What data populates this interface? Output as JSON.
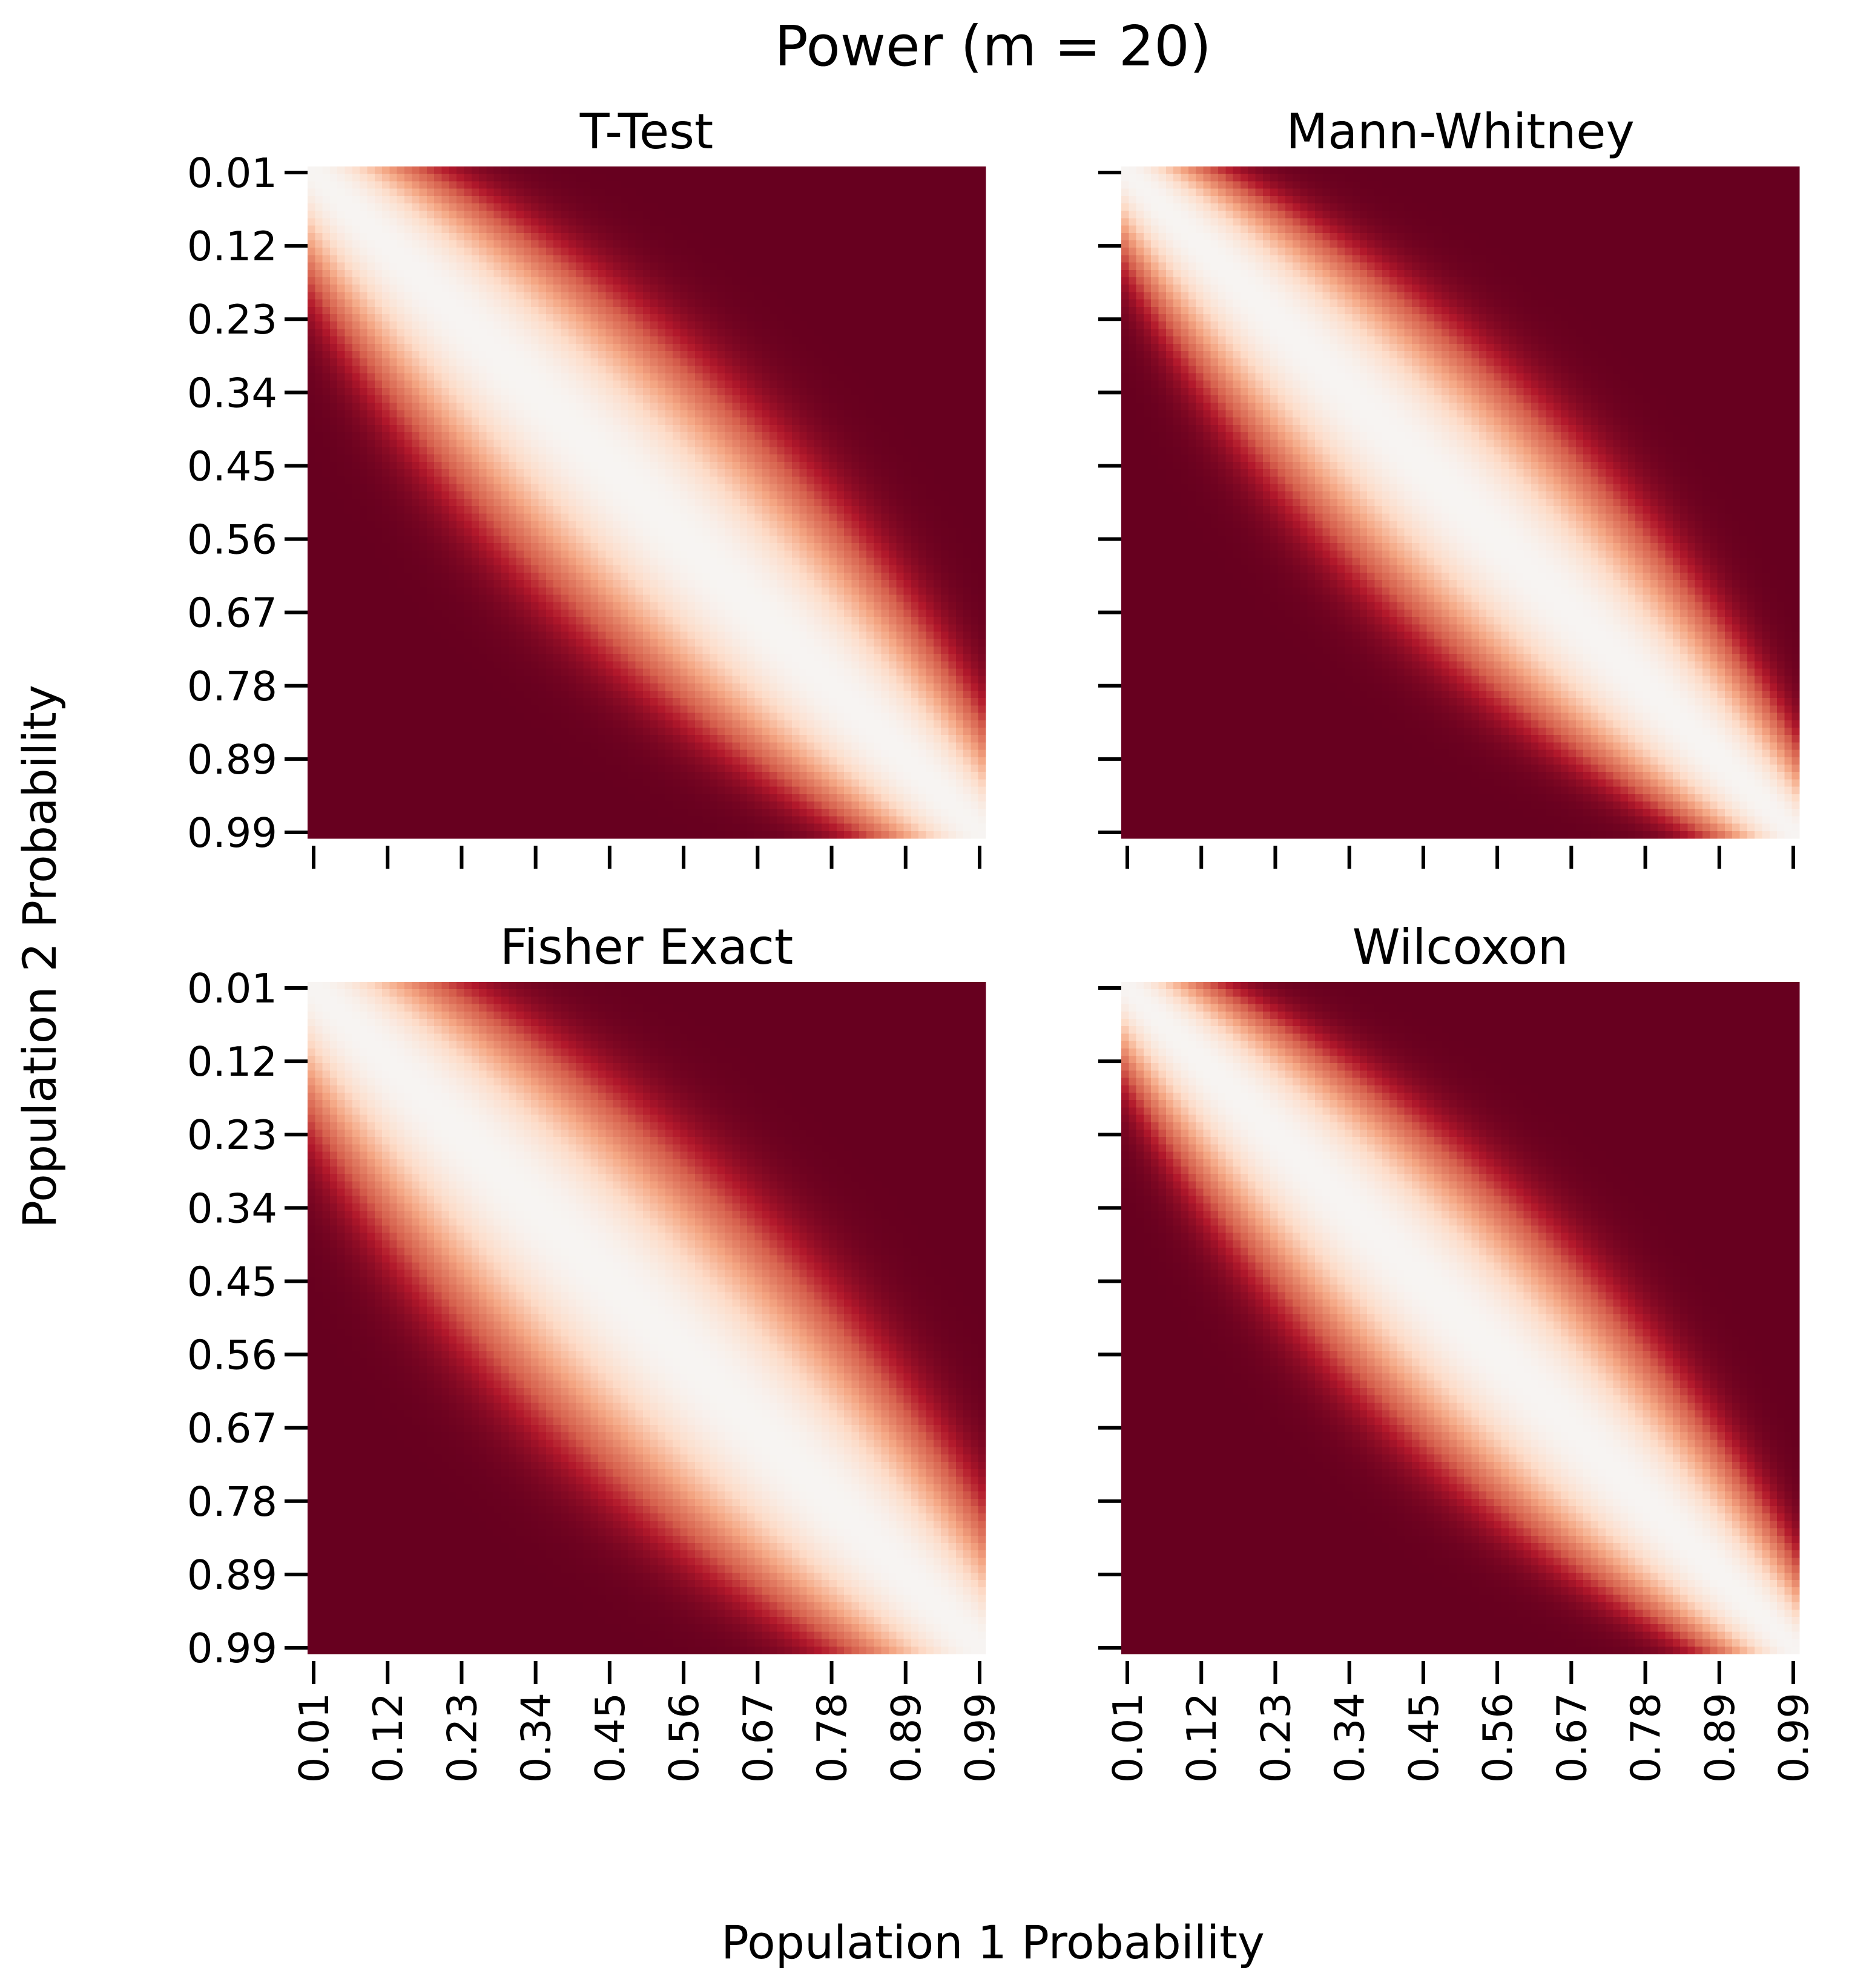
{
  "figure": {
    "title": "Power (m = 20)",
    "xlabel": "Population 1 Probability",
    "ylabel": "Population 2 Probability"
  },
  "chart_data": {
    "type": "heatmap",
    "x": {
      "label": "Population 1 Probability",
      "range": [
        0.01,
        0.99
      ],
      "ticks": [
        "0.01",
        "0.12",
        "0.23",
        "0.34",
        "0.45",
        "0.56",
        "0.67",
        "0.78",
        "0.89",
        "0.99"
      ]
    },
    "y": {
      "label": "Population 2 Probability",
      "range": [
        0.01,
        0.99
      ],
      "ticks": [
        "0.01",
        "0.12",
        "0.23",
        "0.34",
        "0.45",
        "0.56",
        "0.67",
        "0.78",
        "0.89",
        "0.99"
      ],
      "direction": "top-to-bottom"
    },
    "value_range": [
      0,
      1
    ],
    "colormap": {
      "low": "#f7f4f2",
      "high": "#67001f",
      "scale": "white-to-dark-red"
    },
    "grid_cells_per_axis": 91,
    "colorbar": false,
    "panels": [
      {
        "title": "T-Test",
        "x_ticks_labeled": false,
        "y_ticks_labeled": true,
        "band_halfwidth_at_center": 0.22,
        "band_halfwidth_at_corners": 0.1
      },
      {
        "title": "Mann-Whitney",
        "x_ticks_labeled": false,
        "y_ticks_labeled": false,
        "band_halfwidth_at_center": 0.2,
        "band_halfwidth_at_corners": 0.075
      },
      {
        "title": "Fisher Exact",
        "x_ticks_labeled": true,
        "y_ticks_labeled": true,
        "band_halfwidth_at_center": 0.24,
        "band_halfwidth_at_corners": 0.12
      },
      {
        "title": "Wilcoxon",
        "x_ticks_labeled": true,
        "y_ticks_labeled": false,
        "band_halfwidth_at_center": 0.2,
        "band_halfwidth_at_corners": 0.075
      }
    ]
  }
}
